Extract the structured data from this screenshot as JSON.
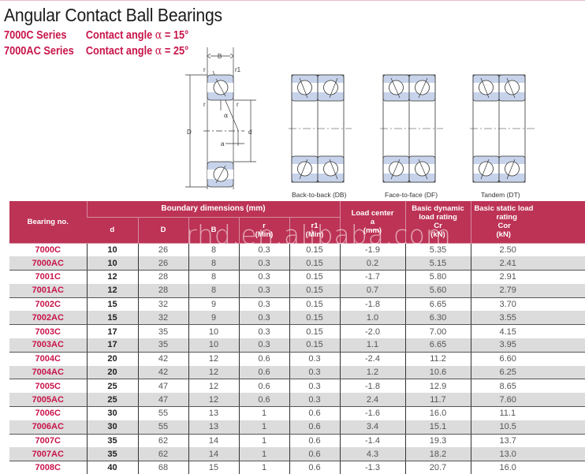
{
  "title": "Angular Contact Ball Bearings",
  "series": [
    {
      "name": "7000C Series",
      "angle_label": "Contact angle",
      "alpha": "α",
      "angle_value": "= 15°"
    },
    {
      "name": "7000AC Series",
      "angle_label": "Contact angle",
      "alpha": "α",
      "angle_value": "= 25°"
    }
  ],
  "diagram": {
    "labels": {
      "B": "B",
      "D": "D",
      "d": "d",
      "a": "a",
      "r": "r",
      "r1": "r1",
      "alpha": "α"
    },
    "arrangements": [
      {
        "caption": "Back-to-back (DB)"
      },
      {
        "caption": "Face-to-face (DF)"
      },
      {
        "caption": "Tandem (DT)"
      }
    ]
  },
  "table": {
    "header": {
      "bearing_no": "Bearing no.",
      "boundary_group": "Boundary dimensions (mm)",
      "d": "d",
      "D": "D",
      "B": "B",
      "r": "r",
      "r_min": "(Min)",
      "r1": "r1",
      "r1_min": "(Min)",
      "load_center": "Load center",
      "load_center_sym": "a",
      "load_center_unit": "(mm)",
      "dynamic_l1": "Basic dynamic",
      "dynamic_l2": "load rating",
      "dynamic_sym": "Cr",
      "dynamic_unit": "(kN)",
      "static_l1": "Basic static load",
      "static_l2": "rating",
      "static_sym": "Cor",
      "static_unit": "(kN)"
    },
    "rows": [
      {
        "no": "7000C",
        "d": "10",
        "D": "26",
        "B": "8",
        "r": "0.3",
        "r1": "0.15",
        "a": "-1.9",
        "Cr": "5.35",
        "Cor": "2.50"
      },
      {
        "no": "7000AC",
        "d": "10",
        "D": "26",
        "B": "8",
        "r": "0.3",
        "r1": "0.15",
        "a": "0.2",
        "Cr": "5.15",
        "Cor": "2.41"
      },
      {
        "no": "7001C",
        "d": "12",
        "D": "28",
        "B": "8",
        "r": "0.3",
        "r1": "0.15",
        "a": "-1.7",
        "Cr": "5.80",
        "Cor": "2.91"
      },
      {
        "no": "7001AC",
        "d": "12",
        "D": "28",
        "B": "8",
        "r": "0.3",
        "r1": "0.15",
        "a": "0.7",
        "Cr": "5.60",
        "Cor": "2.79"
      },
      {
        "no": "7002C",
        "d": "15",
        "D": "32",
        "B": "9",
        "r": "0.3",
        "r1": "0.15",
        "a": "-1.8",
        "Cr": "6.65",
        "Cor": "3.70"
      },
      {
        "no": "7002AC",
        "d": "15",
        "D": "32",
        "B": "9",
        "r": "0.3",
        "r1": "0.15",
        "a": "1.0",
        "Cr": "6.30",
        "Cor": "3.55"
      },
      {
        "no": "7003C",
        "d": "17",
        "D": "35",
        "B": "10",
        "r": "0.3",
        "r1": "0.15",
        "a": "-2.0",
        "Cr": "7.00",
        "Cor": "4.15"
      },
      {
        "no": "7003AC",
        "d": "17",
        "D": "35",
        "B": "10",
        "r": "0.3",
        "r1": "0.15",
        "a": "1.1",
        "Cr": "6.65",
        "Cor": "3.95"
      },
      {
        "no": "7004C",
        "d": "20",
        "D": "42",
        "B": "12",
        "r": "0.6",
        "r1": "0.3",
        "a": "-2.4",
        "Cr": "11.2",
        "Cor": "6.60"
      },
      {
        "no": "7004AC",
        "d": "20",
        "D": "42",
        "B": "12",
        "r": "0.6",
        "r1": "0.3",
        "a": "1.2",
        "Cr": "10.6",
        "Cor": "6.25"
      },
      {
        "no": "7005C",
        "d": "25",
        "D": "47",
        "B": "12",
        "r": "0.6",
        "r1": "0.3",
        "a": "-1.8",
        "Cr": "12.9",
        "Cor": "8.65"
      },
      {
        "no": "7005AC",
        "d": "25",
        "D": "47",
        "B": "12",
        "r": "0.6",
        "r1": "0.3",
        "a": "2.4",
        "Cr": "11.7",
        "Cor": "7.60"
      },
      {
        "no": "7006C",
        "d": "30",
        "D": "55",
        "B": "13",
        "r": "1",
        "r1": "0.6",
        "a": "-1.6",
        "Cr": "16.0",
        "Cor": "11.1"
      },
      {
        "no": "7006AC",
        "d": "30",
        "D": "55",
        "B": "13",
        "r": "1",
        "r1": "0.6",
        "a": "3.4",
        "Cr": "15.1",
        "Cor": "10.5"
      },
      {
        "no": "7007C",
        "d": "35",
        "D": "62",
        "B": "14",
        "r": "1",
        "r1": "0.6",
        "a": "-1.4",
        "Cr": "19.3",
        "Cor": "13.7"
      },
      {
        "no": "7007AC",
        "d": "35",
        "D": "62",
        "B": "14",
        "r": "1",
        "r1": "0.6",
        "a": "4.3",
        "Cr": "18.2",
        "Cor": "13.0"
      },
      {
        "no": "7008C",
        "d": "40",
        "D": "68",
        "B": "15",
        "r": "1",
        "r1": "0.6",
        "a": "-1.3",
        "Cr": "20.7",
        "Cor": "16.0"
      }
    ]
  },
  "watermark": "rhd.en.alibaba.com",
  "colors": {
    "accent": "#c8144a",
    "header_bg": "#bc3355",
    "alt_row": "#dcdcdc",
    "bearing_fill": "#c7d3ea"
  }
}
